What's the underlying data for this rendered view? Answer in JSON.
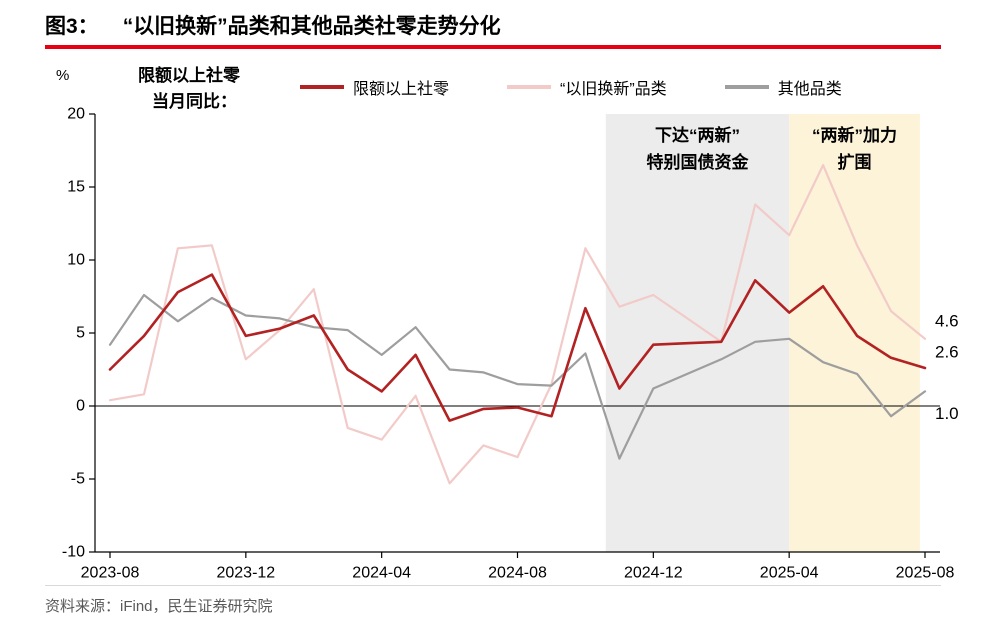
{
  "header": {
    "title_prefix": "图3：",
    "title": "“以旧换新”品类和其他品类社零走势分化",
    "accent_color": "#e60012"
  },
  "annotation": {
    "line1": "限额以上社零",
    "line2": "当月同比：",
    "unit": "%"
  },
  "legend": {
    "items": [
      {
        "key": "limit-above-retail",
        "label": "限额以上社零",
        "color": "#b22222"
      },
      {
        "key": "trade-in-category",
        "label": "“以旧换新”品类",
        "color": "#f2cbc9"
      },
      {
        "key": "other-category",
        "label": "其他品类",
        "color": "#9e9e9e"
      }
    ]
  },
  "footer": {
    "source": "资料来源：iFind，民生证券研究院"
  },
  "chart_data": {
    "type": "line",
    "title": "“以旧换新”品类和其他品类社零走势分化",
    "xlabel": "",
    "ylabel": "%",
    "ylim": [
      -10,
      20
    ],
    "y_ticks": [
      20,
      15,
      10,
      5,
      0,
      -5,
      -10
    ],
    "grid": false,
    "legend_position": "top",
    "x": [
      "2023-08",
      "2023-09",
      "2023-10",
      "2023-11",
      "2023-12",
      "2024-01",
      "2024-02",
      "2024-03",
      "2024-04",
      "2024-05",
      "2024-06",
      "2024-07",
      "2024-08",
      "2024-09",
      "2024-10",
      "2024-11",
      "2024-12",
      "2025-01",
      "2025-02",
      "2025-03",
      "2025-04",
      "2025-05",
      "2025-06",
      "2025-07",
      "2025-08"
    ],
    "x_tick_labels": [
      "2023-08",
      "2023-12",
      "2024-04",
      "2024-08",
      "2024-12",
      "2025-04",
      "2025-08"
    ],
    "series": [
      {
        "key": "limit-above-retail",
        "name": "限额以上社零",
        "color": "#b22222",
        "width": 2.6,
        "end_label": "2.6",
        "values": [
          2.5,
          4.8,
          7.8,
          9.0,
          4.8,
          5.3,
          6.2,
          2.5,
          1.0,
          3.5,
          -1.0,
          -0.2,
          -0.1,
          -0.7,
          6.7,
          1.2,
          4.2,
          4.3,
          4.4,
          8.6,
          6.4,
          8.2,
          4.8,
          3.3,
          2.6
        ]
      },
      {
        "key": "trade-in-category",
        "name": "“以旧换新”品类",
        "color": "#f2cbc9",
        "width": 2.2,
        "end_label": "4.6",
        "values": [
          0.4,
          0.8,
          10.8,
          11.0,
          3.2,
          5.2,
          8.0,
          -1.5,
          -2.3,
          0.7,
          -5.3,
          -2.7,
          -3.5,
          1.5,
          10.8,
          6.8,
          7.6,
          6.0,
          4.4,
          13.8,
          11.7,
          16.5,
          11.0,
          6.5,
          4.6
        ]
      },
      {
        "key": "other-category",
        "name": "其他品类",
        "color": "#9e9e9e",
        "width": 2.2,
        "end_label": "1.0",
        "values": [
          4.2,
          7.6,
          5.8,
          7.4,
          6.2,
          6.0,
          5.4,
          5.2,
          3.5,
          5.4,
          2.5,
          2.3,
          1.5,
          1.4,
          3.6,
          -3.6,
          1.2,
          2.2,
          3.2,
          4.4,
          4.6,
          3.0,
          2.2,
          -0.7,
          1.0
        ]
      }
    ],
    "regions": [
      {
        "label": "下达“两新”\n特别国债资金",
        "start_index": 14.6,
        "end_index": 20,
        "fill": "#ececec"
      },
      {
        "label": "“两新”加力\n扩围",
        "start_index": 20,
        "end_index": 23.85,
        "fill": "#fcf3d8"
      }
    ]
  }
}
